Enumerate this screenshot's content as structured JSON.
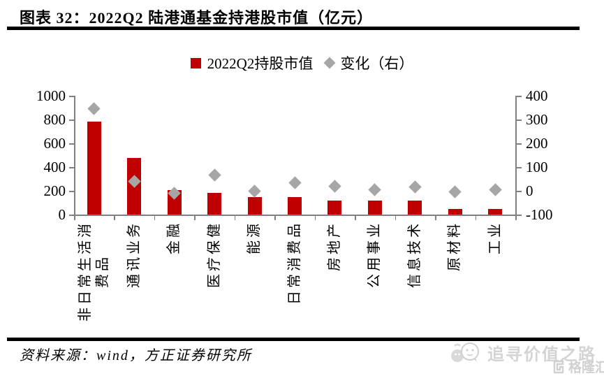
{
  "header": {
    "title": "图表 32：2022Q2 陆港通基金持港股市值（亿元）"
  },
  "legend": {
    "bar_label": "2022Q2持股市值",
    "change_label": "变化（右）"
  },
  "colors": {
    "bar": "#c00000",
    "diamond": "#a6a6a6",
    "axis": "#808080",
    "watermark": "#d4d4d4"
  },
  "chart_data": {
    "type": "bar",
    "title": "2022Q2 陆港通基金持港股市值（亿元）",
    "categories": [
      "非日常生活消费品",
      "通讯业务",
      "金融",
      "医疗保健",
      "能源",
      "日常消费品",
      "房地产",
      "公用事业",
      "信息技术",
      "原材料",
      "工业"
    ],
    "category_label_lines": [
      [
        "非日常生活消",
        "费品"
      ],
      [
        "通讯业务"
      ],
      [
        "金融"
      ],
      [
        "医疗保健"
      ],
      [
        "能源"
      ],
      [
        "日常消费品"
      ],
      [
        "房地产"
      ],
      [
        "公用事业"
      ],
      [
        "信息技术"
      ],
      [
        "原材料"
      ],
      [
        "工业"
      ]
    ],
    "series": [
      {
        "name": "2022Q2持股市值",
        "type": "bar",
        "axis": "left",
        "values": [
          780,
          475,
          205,
          185,
          145,
          145,
          115,
          120,
          120,
          45,
          45
        ]
      },
      {
        "name": "变化（右）",
        "type": "scatter",
        "marker": "diamond",
        "axis": "right",
        "values": [
          345,
          40,
          -10,
          65,
          0,
          35,
          20,
          5,
          15,
          -5,
          5
        ]
      }
    ],
    "left_axis": {
      "min": 0,
      "max": 1000,
      "step": 200
    },
    "right_axis": {
      "min": -100,
      "max": 400,
      "step": 100
    },
    "grid": false,
    "legend_position": "top"
  },
  "footer": {
    "source": "资料来源：wind，方正证券研究所"
  },
  "watermark": {
    "text": "追寻价值之路",
    "logo_text": "格隆汇"
  }
}
